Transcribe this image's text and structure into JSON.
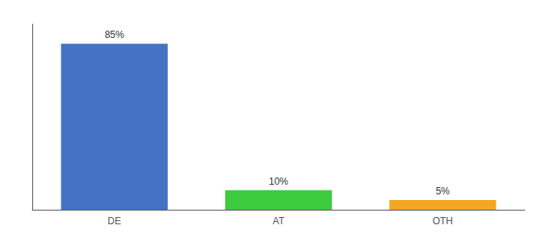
{
  "chart_data": {
    "type": "bar",
    "categories": [
      "DE",
      "AT",
      "OTH"
    ],
    "values": [
      85,
      10,
      5
    ],
    "value_labels": [
      "85%",
      "10%",
      "5%"
    ],
    "data_labels": true,
    "colors": [
      "#4472c4",
      "#3dcc3d",
      "#f5a623"
    ],
    "ylim": [
      0,
      95
    ],
    "tick_labels": "x",
    "grid": false
  }
}
